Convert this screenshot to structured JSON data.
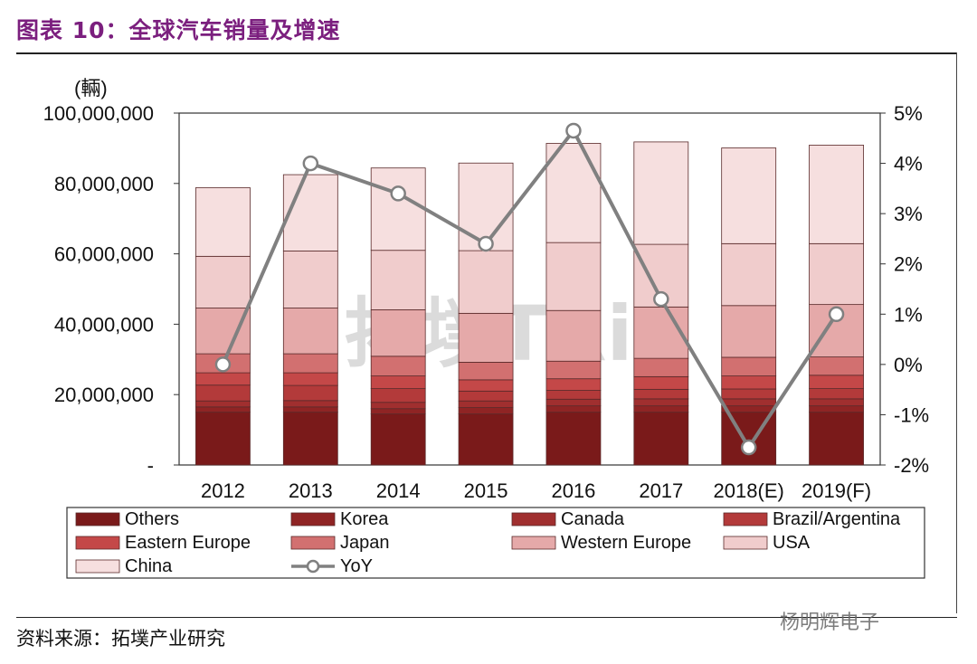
{
  "figure": {
    "title": "图表 10：全球汽车销量及增速",
    "source": "资料来源：拓墣产业研究",
    "account": "杨明辉电子",
    "watermark": "拓墣TRi"
  },
  "chart_data": {
    "type": "bar",
    "stacked": true,
    "unit_label": "(輛)",
    "categories": [
      "2012",
      "2013",
      "2014",
      "2015",
      "2016",
      "2017",
      "2018(E)",
      "2019(F)"
    ],
    "y_left": {
      "ylim": [
        0,
        100000000
      ],
      "ticks": [
        "-",
        "20,000,000",
        "40,000,000",
        "60,000,000",
        "80,000,000",
        "100,000,000"
      ],
      "tick_values": [
        0,
        20000000,
        40000000,
        60000000,
        80000000,
        100000000
      ]
    },
    "y_right": {
      "ylim": [
        -2,
        5
      ],
      "ticks": [
        "-2%",
        "-1%",
        "0%",
        "1%",
        "2%",
        "3%",
        "4%",
        "5%"
      ],
      "tick_values": [
        -2,
        -1,
        0,
        1,
        2,
        3,
        4,
        5
      ]
    },
    "series": [
      {
        "name": "Others",
        "color": "#7a1a1a",
        "values": [
          15000000,
          15000000,
          14500000,
          14500000,
          15000000,
          15000000,
          15000000,
          15000000
        ]
      },
      {
        "name": "Korea",
        "color": "#8f2424",
        "values": [
          1500000,
          1500000,
          1500000,
          1800000,
          1800000,
          1800000,
          1800000,
          1800000
        ]
      },
      {
        "name": "Canada",
        "color": "#a02f2f",
        "values": [
          1700000,
          1800000,
          1800000,
          1900000,
          1900000,
          2000000,
          2000000,
          2000000
        ]
      },
      {
        "name": "Brazil/Argentina",
        "color": "#b33a3a",
        "values": [
          4500000,
          4300000,
          3900000,
          2800000,
          2500000,
          2700000,
          2800000,
          2900000
        ]
      },
      {
        "name": "Eastern Europe",
        "color": "#c44848",
        "values": [
          3500000,
          3600000,
          3600000,
          3200000,
          3300000,
          3600000,
          3700000,
          3800000
        ]
      },
      {
        "name": "Japan",
        "color": "#d27070",
        "values": [
          5400000,
          5400000,
          5600000,
          5000000,
          5000000,
          5200000,
          5300000,
          5200000
        ]
      },
      {
        "name": "Western Europe",
        "color": "#e5a9a9",
        "values": [
          13000000,
          13000000,
          13200000,
          13900000,
          14400000,
          14600000,
          14700000,
          14900000
        ]
      },
      {
        "name": "USA",
        "color": "#f0cccc",
        "values": [
          14700000,
          16200000,
          16900000,
          17800000,
          19300000,
          17800000,
          17600000,
          17300000
        ]
      },
      {
        "name": "China",
        "color": "#f6dfdf",
        "values": [
          19500000,
          21700000,
          23400000,
          24900000,
          28200000,
          29100000,
          27200000,
          28000000
        ]
      }
    ],
    "line": {
      "name": "YoY",
      "axis": "right",
      "color": "#808080",
      "values": [
        0.0,
        4.0,
        3.4,
        2.4,
        4.65,
        1.3,
        -1.65,
        1.0
      ]
    },
    "legend_position": "bottom",
    "grid": false
  }
}
